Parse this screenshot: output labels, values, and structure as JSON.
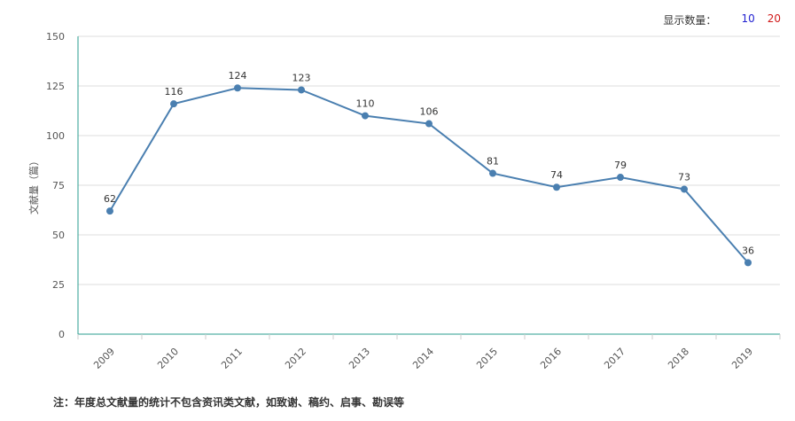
{
  "display_count": {
    "label": "显示数量：",
    "options": [
      "10",
      "20"
    ],
    "option_colors": [
      "#2323d1",
      "#d11a1a"
    ]
  },
  "footer_note": "注：年度总文献量的统计不包含资讯类文献，如致谢、稿约、启事、勘误等",
  "colors": {
    "line": "#4a7fb0",
    "axis": "#2a9d8f",
    "grid": "#dddddd"
  },
  "chart_data": {
    "type": "line",
    "title": "",
    "xlabel": "",
    "ylabel": "文献量（篇）",
    "ylim": [
      0,
      150
    ],
    "yticks": [
      0,
      25,
      50,
      75,
      100,
      125,
      150
    ],
    "grid": true,
    "categories": [
      "2009",
      "2010",
      "2011",
      "2012",
      "2013",
      "2014",
      "2015",
      "2016",
      "2017",
      "2018",
      "2019"
    ],
    "series": [
      {
        "values": [
          62,
          116,
          124,
          123,
          110,
          106,
          81,
          74,
          79,
          73,
          36
        ]
      }
    ]
  }
}
